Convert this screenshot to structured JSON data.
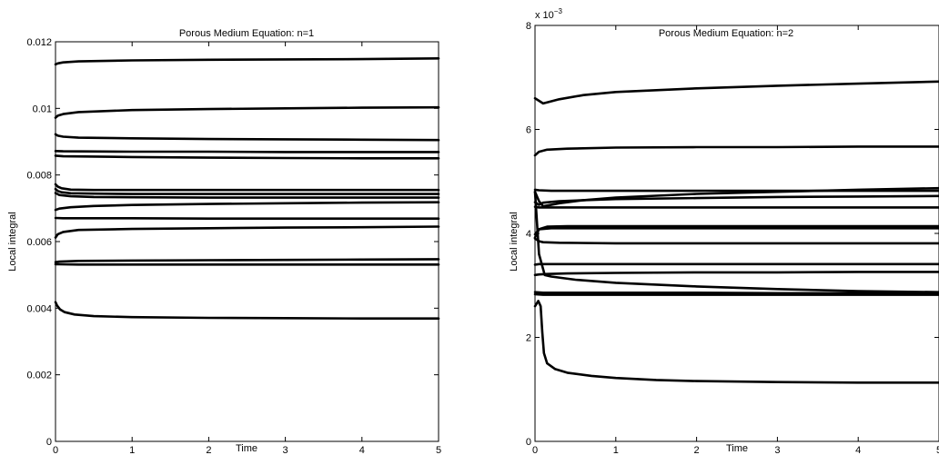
{
  "chart_data": [
    {
      "type": "line",
      "title": "Porous Medium Equation: n=1",
      "xlabel": "Time",
      "ylabel": "Local integral",
      "xlim": [
        0,
        5
      ],
      "ylim": [
        0,
        0.012
      ],
      "xticks": [
        "0",
        "1",
        "2",
        "3",
        "4",
        "5"
      ],
      "yticks": [
        "0",
        "0.002",
        "0.004",
        "0.006",
        "0.008",
        "0.01",
        "0.012"
      ],
      "y_exponent_label": "",
      "series": [
        {
          "x": [
            0.0,
            0.03,
            0.1,
            0.3,
            1,
            2,
            3,
            4,
            5
          ],
          "y": [
            0.01132,
            0.01135,
            0.01138,
            0.01141,
            0.01144,
            0.01146,
            0.01147,
            0.01148,
            0.0115
          ]
        },
        {
          "x": [
            0.0,
            0.03,
            0.1,
            0.3,
            1,
            2,
            3,
            4,
            5
          ],
          "y": [
            0.00972,
            0.00978,
            0.00983,
            0.00989,
            0.00995,
            0.00998,
            0.01,
            0.01002,
            0.01003
          ]
        },
        {
          "x": [
            0.0,
            0.03,
            0.1,
            0.3,
            1,
            2,
            3,
            4,
            5
          ],
          "y": [
            0.00922,
            0.00918,
            0.00915,
            0.00912,
            0.0091,
            0.00908,
            0.00907,
            0.00906,
            0.00905
          ]
        },
        {
          "x": [
            0.0,
            0.1,
            1,
            2,
            3,
            4,
            5
          ],
          "y": [
            0.00872,
            0.00871,
            0.0087,
            0.0087,
            0.00869,
            0.00869,
            0.00869
          ]
        },
        {
          "x": [
            0.0,
            0.1,
            1,
            2,
            3,
            4,
            5
          ],
          "y": [
            0.00858,
            0.00856,
            0.00854,
            0.00852,
            0.00851,
            0.0085,
            0.0085
          ]
        },
        {
          "x": [
            0.0,
            0.03,
            0.08,
            0.2,
            0.5,
            1,
            2,
            3,
            4,
            5
          ],
          "y": [
            0.00772,
            0.00765,
            0.0076,
            0.00756,
            0.00755,
            0.00755,
            0.00755,
            0.00755,
            0.00755,
            0.00755
          ]
        },
        {
          "x": [
            0.0,
            0.03,
            0.08,
            0.2,
            0.5,
            1,
            2,
            3,
            4,
            5
          ],
          "y": [
            0.00758,
            0.00752,
            0.00748,
            0.00745,
            0.00744,
            0.00743,
            0.00743,
            0.00743,
            0.00743,
            0.00743
          ]
        },
        {
          "x": [
            0.0,
            0.05,
            0.2,
            0.5,
            1,
            2,
            3,
            4,
            5
          ],
          "y": [
            0.00746,
            0.0074,
            0.00736,
            0.00734,
            0.00733,
            0.00732,
            0.00732,
            0.00732,
            0.00732
          ]
        },
        {
          "x": [
            0.0,
            0.05,
            0.2,
            0.5,
            1,
            2,
            3,
            4,
            5
          ],
          "y": [
            0.00695,
            0.00699,
            0.00703,
            0.00707,
            0.0071,
            0.00713,
            0.00715,
            0.00717,
            0.00718
          ]
        },
        {
          "x": [
            0.0,
            0.1,
            1,
            2,
            3,
            4,
            5
          ],
          "y": [
            0.00671,
            0.0067,
            0.0067,
            0.00669,
            0.00669,
            0.00669,
            0.00669
          ]
        },
        {
          "x": [
            0.0,
            0.03,
            0.1,
            0.3,
            1,
            2,
            3,
            4,
            5
          ],
          "y": [
            0.00612,
            0.00622,
            0.00629,
            0.00635,
            0.00638,
            0.0064,
            0.00642,
            0.00643,
            0.00645
          ]
        },
        {
          "x": [
            0.0,
            0.05,
            0.3,
            1,
            2,
            3,
            4,
            5
          ],
          "y": [
            0.00538,
            0.0054,
            0.00542,
            0.00543,
            0.00544,
            0.00545,
            0.00546,
            0.00547
          ]
        },
        {
          "x": [
            0.0,
            0.05,
            0.3,
            1,
            2,
            3,
            4,
            5
          ],
          "y": [
            0.00532,
            0.00532,
            0.00531,
            0.00531,
            0.00531,
            0.00531,
            0.00531,
            0.00531
          ]
        },
        {
          "x": [
            0.0,
            0.02,
            0.06,
            0.12,
            0.25,
            0.5,
            1,
            2,
            3,
            4,
            5
          ],
          "y": [
            0.00418,
            0.00408,
            0.00396,
            0.00388,
            0.00381,
            0.00376,
            0.00373,
            0.00371,
            0.0037,
            0.00369,
            0.00369
          ]
        }
      ]
    },
    {
      "type": "line",
      "title": "Porous Medium Equation: n=2",
      "xlabel": "Time",
      "ylabel": "Local integral",
      "xlim": [
        0,
        5
      ],
      "ylim": [
        0,
        0.008
      ],
      "xticks": [
        "0",
        "1",
        "2",
        "3",
        "4",
        "5"
      ],
      "yticks": [
        "0",
        "2",
        "4",
        "6",
        "8"
      ],
      "y_exponent_label": "x 10",
      "y_exponent_power": "−3",
      "series": [
        {
          "x": [
            0.0,
            0.05,
            0.1,
            0.15,
            0.3,
            0.6,
            1,
            2,
            3,
            4,
            5
          ],
          "y": [
            0.0066,
            0.00655,
            0.0065,
            0.00652,
            0.00658,
            0.00666,
            0.00672,
            0.00679,
            0.00684,
            0.00688,
            0.00692
          ]
        },
        {
          "x": [
            0.0,
            0.05,
            0.15,
            0.4,
            1,
            2,
            3,
            4,
            5
          ],
          "y": [
            0.0055,
            0.00557,
            0.00561,
            0.00563,
            0.00565,
            0.00566,
            0.00566,
            0.00567,
            0.00567
          ]
        },
        {
          "x": [
            0.0,
            0.05,
            0.2,
            1,
            2,
            3,
            4,
            5
          ],
          "y": [
            0.00484,
            0.00483,
            0.00482,
            0.00482,
            0.00482,
            0.00482,
            0.00482,
            0.00482
          ]
        },
        {
          "x": [
            0.0,
            0.05,
            0.1,
            0.3,
            0.6,
            1,
            2,
            3,
            4,
            5
          ],
          "y": [
            0.0048,
            0.00462,
            0.00452,
            0.00458,
            0.00464,
            0.00469,
            0.00476,
            0.0048,
            0.00484,
            0.00487
          ]
        },
        {
          "x": [
            0.0,
            0.05,
            0.1,
            0.3,
            0.6,
            1,
            2,
            3,
            4,
            5
          ],
          "y": [
            0.0046,
            0.00455,
            0.00459,
            0.00462,
            0.00464,
            0.00466,
            0.00468,
            0.0047,
            0.00471,
            0.00472
          ]
        },
        {
          "x": [
            0.0,
            0.05,
            0.2,
            1,
            2,
            3,
            4,
            5
          ],
          "y": [
            0.00451,
            0.0045,
            0.0045,
            0.0045,
            0.0045,
            0.0045,
            0.0045,
            0.0045
          ]
        },
        {
          "x": [
            0.0,
            0.05,
            0.15,
            0.4,
            1,
            2,
            3,
            4,
            5
          ],
          "y": [
            0.00398,
            0.00408,
            0.00413,
            0.00414,
            0.00414,
            0.00414,
            0.00414,
            0.00414,
            0.00414
          ]
        },
        {
          "x": [
            0.0,
            0.05,
            0.2,
            1,
            2,
            3,
            4,
            5
          ],
          "y": [
            0.00392,
            0.00408,
            0.0041,
            0.0041,
            0.0041,
            0.0041,
            0.0041,
            0.0041
          ]
        },
        {
          "x": [
            0.0,
            0.05,
            0.1,
            0.3,
            1,
            2,
            3,
            4,
            5
          ],
          "y": [
            0.0039,
            0.00385,
            0.00383,
            0.00382,
            0.00381,
            0.00381,
            0.00381,
            0.00381,
            0.00381
          ]
        },
        {
          "x": [
            0.0,
            0.05,
            0.2,
            1,
            2,
            3,
            4,
            5
          ],
          "y": [
            0.0034,
            0.00341,
            0.00341,
            0.00341,
            0.00341,
            0.00341,
            0.00341,
            0.00341
          ]
        },
        {
          "x": [
            0.0,
            0.05,
            0.15,
            0.4,
            1,
            2,
            3,
            4,
            5
          ],
          "y": [
            0.0032,
            0.00321,
            0.00322,
            0.00323,
            0.00324,
            0.00325,
            0.00325,
            0.00326,
            0.00326
          ]
        },
        {
          "x": [
            0.0,
            0.05,
            0.12,
            0.2,
            0.5,
            1,
            2,
            3,
            4,
            5
          ],
          "y": [
            0.0048,
            0.0036,
            0.0032,
            0.00317,
            0.00311,
            0.00305,
            0.00298,
            0.00293,
            0.00289,
            0.00287
          ]
        },
        {
          "x": [
            0.0,
            0.1,
            1,
            2,
            3,
            4,
            5
          ],
          "y": [
            0.00287,
            0.00286,
            0.00286,
            0.00286,
            0.00285,
            0.00285,
            0.00285
          ]
        },
        {
          "x": [
            0.0,
            0.1,
            1,
            2,
            3,
            4,
            5
          ],
          "y": [
            0.00283,
            0.00282,
            0.00282,
            0.00282,
            0.00282,
            0.00282,
            0.00282
          ]
        },
        {
          "x": [
            0.0,
            0.04,
            0.07,
            0.09,
            0.11,
            0.15,
            0.25,
            0.4,
            0.7,
            1,
            1.5,
            2,
            3,
            4,
            5
          ],
          "y": [
            0.0026,
            0.0027,
            0.0026,
            0.0021,
            0.0017,
            0.0015,
            0.00139,
            0.00132,
            0.00126,
            0.00122,
            0.00118,
            0.00116,
            0.00114,
            0.00113,
            0.00113
          ]
        }
      ]
    }
  ]
}
